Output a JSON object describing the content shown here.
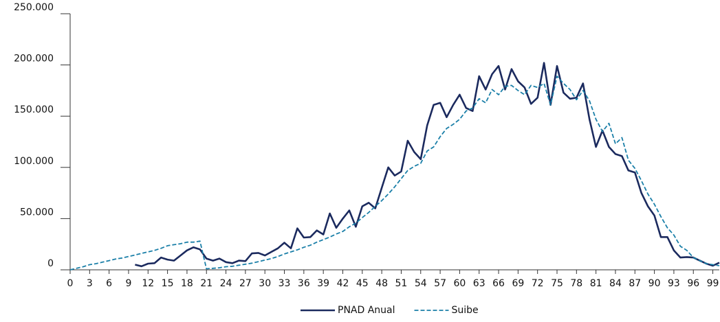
{
  "chart_data": {
    "type": "line",
    "x": [
      0,
      1,
      2,
      3,
      4,
      5,
      6,
      7,
      8,
      9,
      10,
      11,
      12,
      13,
      14,
      15,
      16,
      17,
      18,
      19,
      20,
      21,
      22,
      23,
      24,
      25,
      26,
      27,
      28,
      29,
      30,
      31,
      32,
      33,
      34,
      35,
      36,
      37,
      38,
      39,
      40,
      41,
      42,
      43,
      44,
      45,
      46,
      47,
      48,
      49,
      50,
      51,
      52,
      53,
      54,
      55,
      56,
      57,
      58,
      59,
      60,
      61,
      62,
      63,
      64,
      65,
      66,
      67,
      68,
      69,
      70,
      71,
      72,
      73,
      74,
      75,
      76,
      77,
      78,
      79,
      80,
      81,
      82,
      83,
      84,
      85,
      86,
      87,
      88,
      89,
      90,
      91,
      92,
      93,
      94,
      95,
      96,
      97,
      98,
      99,
      100
    ],
    "series": [
      {
        "name": "PNAD Anual",
        "color": "#1b2a5e",
        "dash": false,
        "values": [
          null,
          null,
          null,
          null,
          null,
          null,
          null,
          null,
          null,
          null,
          5000,
          3500,
          6000,
          6500,
          12000,
          10000,
          9000,
          14000,
          19000,
          22000,
          20000,
          11000,
          9000,
          11000,
          7500,
          6500,
          9000,
          8500,
          16000,
          16500,
          14000,
          17500,
          21000,
          26500,
          21000,
          40500,
          31500,
          32000,
          38500,
          34500,
          55000,
          41000,
          50000,
          58000,
          42000,
          62000,
          65500,
          60000,
          80000,
          100000,
          92000,
          96000,
          126000,
          115000,
          108000,
          141000,
          161000,
          163000,
          149000,
          161000,
          171000,
          158000,
          155000,
          189000,
          176000,
          191000,
          199000,
          176000,
          196000,
          184000,
          178000,
          162000,
          168000,
          202000,
          161000,
          199000,
          173000,
          167000,
          168000,
          182000,
          147000,
          120000,
          136000,
          120000,
          113000,
          111000,
          97000,
          95000,
          75000,
          62000,
          53000,
          32000,
          32000,
          19000,
          12000,
          12500,
          12000,
          9000,
          6000,
          4000,
          7000
        ]
      },
      {
        "name": "Suibe",
        "color": "#1a7fa8",
        "dash": true,
        "values": [
          0,
          1500,
          3000,
          5000,
          6000,
          7500,
          9000,
          10500,
          11500,
          13000,
          14500,
          16000,
          17500,
          19000,
          21000,
          23500,
          24500,
          25500,
          27000,
          27000,
          28000,
          1000,
          1500,
          2000,
          3000,
          3500,
          4500,
          5500,
          6500,
          8000,
          9500,
          11000,
          13000,
          15500,
          17500,
          19500,
          22000,
          24000,
          27000,
          29500,
          32000,
          35000,
          37500,
          42000,
          45500,
          51000,
          56000,
          62000,
          67500,
          74000,
          81000,
          89000,
          97000,
          101000,
          104000,
          116000,
          120000,
          130000,
          138000,
          142000,
          147000,
          155000,
          158000,
          167000,
          163000,
          176000,
          171000,
          179000,
          180000,
          175000,
          171000,
          180000,
          178000,
          182000,
          161000,
          189000,
          182000,
          176000,
          166000,
          175000,
          165000,
          147000,
          135000,
          143000,
          123000,
          129000,
          107000,
          99000,
          87000,
          74000,
          64000,
          52000,
          41000,
          34000,
          23000,
          19000,
          12000,
          9000,
          6000,
          5000,
          4000
        ]
      }
    ],
    "xlim": [
      0,
      100
    ],
    "xticks": [
      0,
      3,
      6,
      9,
      12,
      15,
      18,
      21,
      24,
      27,
      30,
      33,
      36,
      39,
      42,
      45,
      48,
      51,
      54,
      57,
      60,
      63,
      66,
      69,
      72,
      75,
      78,
      81,
      84,
      87,
      90,
      93,
      96,
      99
    ],
    "ylim": [
      0,
      250000
    ],
    "yticks": [
      0,
      {
        "value": 50000,
        "label": "50.000"
      },
      {
        "value": 100000,
        "label": "100.000"
      },
      {
        "value": 150000,
        "label": "150.000"
      },
      {
        "value": 200000,
        "label": "200.000"
      },
      {
        "value": 250000,
        "label": "250.000"
      }
    ],
    "grid": false,
    "legend": "bottom"
  }
}
